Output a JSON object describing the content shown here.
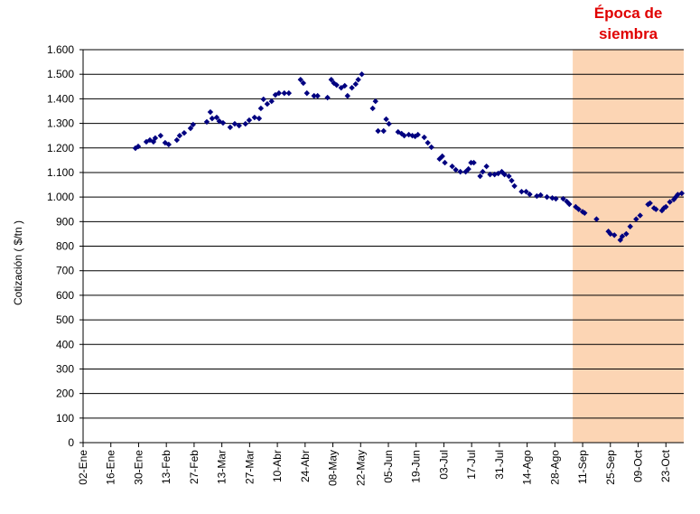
{
  "chart_data": {
    "type": "scatter",
    "annotation": {
      "lines": [
        "Época de",
        "siembra"
      ],
      "color": "#e00000",
      "xlim": [
        249,
        305
      ],
      "fill": "#fcd5b4"
    },
    "ylabel": "Cotización ( $/tn )",
    "color": "#000080",
    "grid": true,
    "xlim": [
      2,
      305
    ],
    "xticks": [
      {
        "value": 2,
        "label": "02-Ene"
      },
      {
        "value": 16,
        "label": "16-Ene"
      },
      {
        "value": 30,
        "label": "30-Ene"
      },
      {
        "value": 44,
        "label": "13-Feb"
      },
      {
        "value": 58,
        "label": "27-Feb"
      },
      {
        "value": 72,
        "label": "13-Mar"
      },
      {
        "value": 86,
        "label": "27-Mar"
      },
      {
        "value": 100,
        "label": "10-Abr"
      },
      {
        "value": 114,
        "label": "24-Abr"
      },
      {
        "value": 128,
        "label": "08-May"
      },
      {
        "value": 142,
        "label": "22-May"
      },
      {
        "value": 156,
        "label": "05-Jun"
      },
      {
        "value": 170,
        "label": "19-Jun"
      },
      {
        "value": 184,
        "label": "03-Jul"
      },
      {
        "value": 198,
        "label": "17-Jul"
      },
      {
        "value": 212,
        "label": "31-Jul"
      },
      {
        "value": 226,
        "label": "14-Ago"
      },
      {
        "value": 240,
        "label": "28-Ago"
      },
      {
        "value": 254,
        "label": "11-Sep"
      },
      {
        "value": 268,
        "label": "25-Sep"
      },
      {
        "value": 282,
        "label": "09-Oct"
      },
      {
        "value": 296,
        "label": "23-Oct"
      }
    ],
    "ylim": [
      0,
      1600
    ],
    "yticks": [
      0,
      100,
      200,
      300,
      400,
      500,
      600,
      700,
      800,
      900,
      {
        "value": 1000,
        "label": "1.000"
      },
      {
        "value": 1100,
        "label": "1.100"
      },
      {
        "value": 1200,
        "label": "1.200"
      },
      {
        "value": 1300,
        "label": "1.300"
      },
      {
        "value": 1400,
        "label": "1.400"
      },
      {
        "value": 1500,
        "label": "1.500"
      },
      {
        "value": 1600,
        "label": "1.600"
      }
    ],
    "x": [
      28.4,
      29.8,
      33.9,
      35.7,
      37.5,
      38.4,
      41.1,
      43.4,
      45.2,
      49.3,
      50.7,
      53,
      56.2,
      57.5,
      64.4,
      66.2,
      67.1,
      69.4,
      70.7,
      72.6,
      76.2,
      78.5,
      80.7,
      83.9,
      85.8,
      88.5,
      90.8,
      91.7,
      93,
      94.9,
      97.1,
      99,
      100.8,
      103.5,
      105.8,
      111.7,
      113.1,
      114.9,
      118.5,
      120.3,
      125.3,
      127.2,
      128.5,
      129.9,
      132.2,
      134,
      135.4,
      137.6,
      139.5,
      140.8,
      142.6,
      148.1,
      149.5,
      150.8,
      153.6,
      154.9,
      156.3,
      160.9,
      162.7,
      164,
      166.3,
      168.1,
      169.5,
      170.9,
      174.1,
      175.9,
      177.7,
      181.8,
      183.2,
      184.5,
      188.2,
      190,
      192.3,
      195,
      196.4,
      197.7,
      199.1,
      202.3,
      203.6,
      205.5,
      207.3,
      209.6,
      211.4,
      213.2,
      214.6,
      216.8,
      218.2,
      219.6,
      223.2,
      225.5,
      227.3,
      230.9,
      232.8,
      236,
      238.7,
      240.5,
      244.2,
      246,
      247.3,
      250.5,
      252,
      254,
      255,
      261,
      267,
      268,
      270,
      273,
      274,
      276,
      278,
      281,
      283,
      287,
      288,
      290,
      291,
      294,
      295,
      296,
      298,
      300,
      301,
      302,
      304
    ],
    "values": [
      1199,
      1206,
      1225,
      1232,
      1225,
      1240,
      1250,
      1221,
      1214,
      1232,
      1250,
      1261,
      1280,
      1295,
      1306,
      1346,
      1320,
      1324,
      1309,
      1302,
      1284,
      1298,
      1291,
      1298,
      1313,
      1324,
      1320,
      1361,
      1398,
      1379,
      1390,
      1416,
      1423,
      1423,
      1423,
      1478,
      1464,
      1423,
      1412,
      1412,
      1405,
      1478,
      1464,
      1456,
      1445,
      1453,
      1412,
      1445,
      1460,
      1478,
      1500,
      1361,
      1390,
      1269,
      1269,
      1317,
      1298,
      1265,
      1258,
      1250,
      1254,
      1250,
      1247,
      1254,
      1243,
      1221,
      1203,
      1155,
      1166,
      1140,
      1125,
      1111,
      1103,
      1103,
      1114,
      1140,
      1140,
      1085,
      1103,
      1125,
      1092,
      1092,
      1096,
      1103,
      1092,
      1085,
      1067,
      1045,
      1022,
      1022,
      1011,
      1004,
      1008,
      1000,
      996,
      993,
      993,
      982,
      971,
      960,
      950,
      940,
      935,
      910,
      860,
      850,
      845,
      825,
      840,
      850,
      880,
      910,
      925,
      970,
      975,
      955,
      950,
      945,
      955,
      960,
      980,
      990,
      1000,
      1010,
      1015
    ]
  }
}
